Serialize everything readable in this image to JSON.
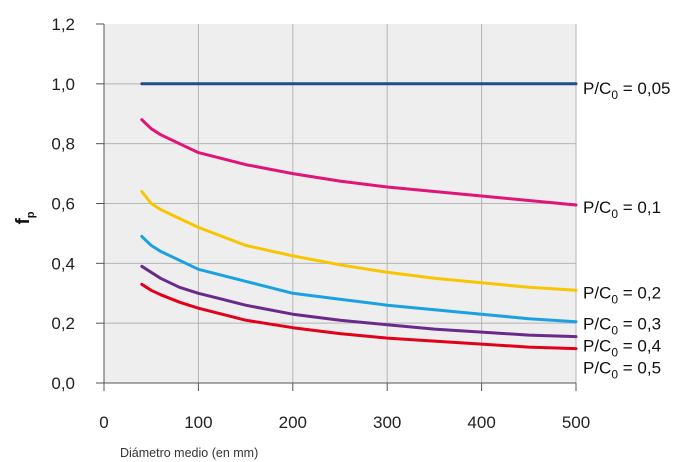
{
  "chart_data": {
    "type": "line",
    "title": "",
    "xlabel": "Diámetro medio (en mm)",
    "ylabel": {
      "main": "f",
      "sub": "p"
    },
    "xlim": [
      0,
      500
    ],
    "ylim": [
      0,
      1.2
    ],
    "xticks": [
      0,
      100,
      200,
      300,
      400,
      500
    ],
    "yticks": [
      0,
      0.2,
      0.4,
      0.6,
      0.8,
      1.0,
      1.2
    ],
    "xtick_labels": [
      "0",
      "100",
      "200",
      "300",
      "400",
      "500"
    ],
    "ytick_labels": [
      "0,0",
      "0,2",
      "0,4",
      "0,6",
      "0,8",
      "1,0",
      "1,2"
    ],
    "grid": true,
    "background": "#eeeeee",
    "series": [
      {
        "name": "P/C0 = 0,05",
        "label": {
          "prefix": "P/C",
          "sub": "0",
          "suffix": " = 0,05"
        },
        "color": "#1f4e8c",
        "x": [
          40,
          500
        ],
        "y": [
          1.0,
          1.0
        ]
      },
      {
        "name": "P/C0 = 0,1",
        "label": {
          "prefix": "P/C",
          "sub": "0",
          "suffix": " = 0,1"
        },
        "color": "#e0157a",
        "x": [
          40,
          50,
          60,
          80,
          100,
          125,
          150,
          200,
          250,
          300,
          350,
          400,
          450,
          500
        ],
        "y": [
          0.88,
          0.85,
          0.83,
          0.8,
          0.77,
          0.75,
          0.73,
          0.7,
          0.675,
          0.655,
          0.64,
          0.625,
          0.61,
          0.595
        ]
      },
      {
        "name": "P/C0 = 0,2",
        "label": {
          "prefix": "P/C",
          "sub": "0",
          "suffix": " = 0,2"
        },
        "color": "#f7c600",
        "x": [
          40,
          50,
          60,
          80,
          100,
          125,
          150,
          200,
          250,
          300,
          350,
          400,
          450,
          500
        ],
        "y": [
          0.64,
          0.6,
          0.58,
          0.55,
          0.52,
          0.49,
          0.46,
          0.425,
          0.395,
          0.37,
          0.35,
          0.335,
          0.32,
          0.31
        ]
      },
      {
        "name": "P/C0 = 0,3",
        "label": {
          "prefix": "P/C",
          "sub": "0",
          "suffix": " = 0,3"
        },
        "color": "#1ba1e2",
        "x": [
          40,
          50,
          60,
          80,
          100,
          125,
          150,
          200,
          250,
          300,
          350,
          400,
          450,
          500
        ],
        "y": [
          0.49,
          0.46,
          0.44,
          0.41,
          0.38,
          0.36,
          0.34,
          0.3,
          0.28,
          0.26,
          0.245,
          0.23,
          0.215,
          0.205
        ]
      },
      {
        "name": "P/C0 = 0,4",
        "label": {
          "prefix": "P/C",
          "sub": "0",
          "suffix": " = 0,4"
        },
        "color": "#6a2a8c",
        "x": [
          40,
          50,
          60,
          80,
          100,
          125,
          150,
          200,
          250,
          300,
          350,
          400,
          450,
          500
        ],
        "y": [
          0.39,
          0.37,
          0.35,
          0.32,
          0.3,
          0.28,
          0.26,
          0.23,
          0.21,
          0.195,
          0.18,
          0.17,
          0.16,
          0.155
        ]
      },
      {
        "name": "P/C0 = 0,5",
        "label": {
          "prefix": "P/C",
          "sub": "0",
          "suffix": " = 0,5"
        },
        "color": "#e3001b",
        "x": [
          40,
          50,
          60,
          80,
          100,
          125,
          150,
          200,
          250,
          300,
          350,
          400,
          450,
          500
        ],
        "y": [
          0.33,
          0.31,
          0.295,
          0.27,
          0.25,
          0.23,
          0.21,
          0.185,
          0.165,
          0.15,
          0.14,
          0.13,
          0.12,
          0.115
        ]
      }
    ]
  }
}
